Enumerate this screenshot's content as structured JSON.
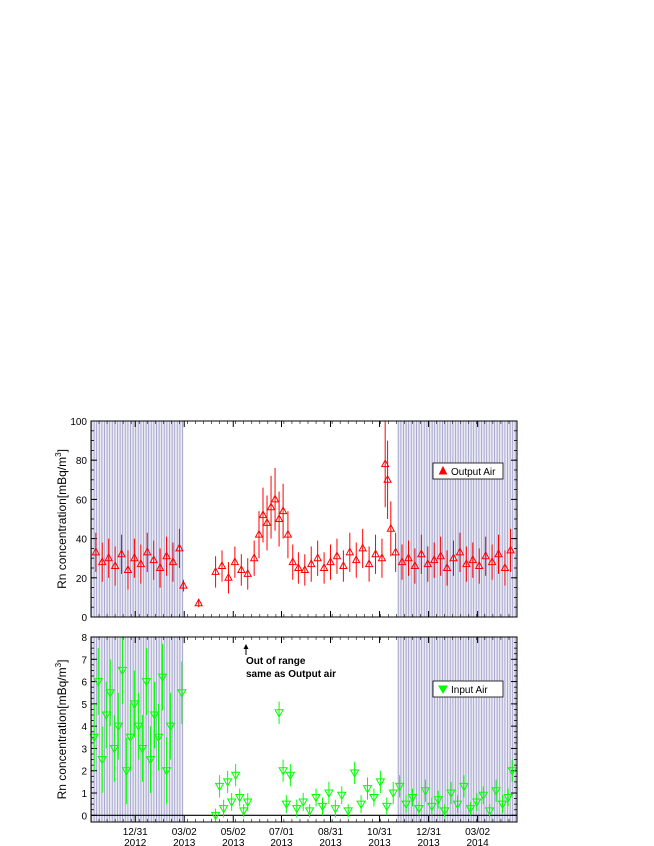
{
  "chart_data": [
    {
      "type": "scatter",
      "ylabel": "Rn concentration[mBq/m",
      "ylabel_sup": "3",
      "ylabel_end": "]",
      "ylim": [
        0,
        100
      ],
      "yticks": [
        0,
        20,
        40,
        60,
        80,
        100
      ],
      "xlim": [
        "2012-11-06",
        "2014-04-20"
      ],
      "shaded_ranges": [
        [
          "2012-11-06",
          "2013-03-01"
        ],
        [
          "2013-11-22",
          "2014-04-20"
        ]
      ],
      "legend": {
        "label": "Output Air",
        "position": "right"
      },
      "color": "#ff0000",
      "marker": "triangle-up",
      "series": [
        {
          "name": "Output Air",
          "x": [
            "2012-11-12",
            "2012-11-20",
            "2012-11-28",
            "2012-12-06",
            "2012-12-14",
            "2012-12-22",
            "2012-12-30",
            "2013-01-07",
            "2013-01-15",
            "2013-01-23",
            "2013-01-31",
            "2013-02-08",
            "2013-02-16",
            "2013-02-24",
            "2013-03-01",
            "2013-03-20",
            "2013-04-10",
            "2013-04-18",
            "2013-04-26",
            "2013-05-04",
            "2013-05-12",
            "2013-05-20",
            "2013-05-28",
            "2013-06-03",
            "2013-06-08",
            "2013-06-13",
            "2013-06-18",
            "2013-06-23",
            "2013-06-28",
            "2013-07-03",
            "2013-07-09",
            "2013-07-15",
            "2013-07-22",
            "2013-07-30",
            "2013-08-07",
            "2013-08-15",
            "2013-08-23",
            "2013-08-31",
            "2013-09-08",
            "2013-09-16",
            "2013-09-24",
            "2013-10-02",
            "2013-10-10",
            "2013-10-18",
            "2013-10-26",
            "2013-11-03",
            "2013-11-07",
            "2013-11-10",
            "2013-11-14",
            "2013-11-20",
            "2013-11-28",
            "2013-12-06",
            "2013-12-14",
            "2013-12-22",
            "2013-12-30",
            "2014-01-07",
            "2014-01-15",
            "2014-01-23",
            "2014-01-31",
            "2014-02-08",
            "2014-02-16",
            "2014-02-24",
            "2014-03-04",
            "2014-03-12",
            "2014-03-20",
            "2014-03-28",
            "2014-04-05",
            "2014-04-12"
          ],
          "y": [
            33,
            28,
            30,
            26,
            32,
            24,
            30,
            27,
            33,
            29,
            25,
            31,
            28,
            35,
            16,
            7,
            23,
            26,
            20,
            28,
            24,
            22,
            30,
            42,
            52,
            48,
            56,
            60,
            50,
            54,
            42,
            28,
            25,
            24,
            27,
            30,
            25,
            28,
            31,
            26,
            33,
            29,
            35,
            27,
            32,
            30,
            78,
            70,
            45,
            33,
            28,
            30,
            26,
            32,
            27,
            29,
            31,
            25,
            30,
            33,
            27,
            29,
            26,
            31,
            28,
            32,
            25,
            34
          ],
          "err": [
            10,
            10,
            10,
            10,
            10,
            10,
            10,
            10,
            10,
            10,
            10,
            10,
            10,
            10,
            3,
            2,
            8,
            8,
            8,
            8,
            8,
            8,
            9,
            12,
            14,
            14,
            16,
            16,
            14,
            14,
            12,
            9,
            8,
            8,
            9,
            9,
            8,
            9,
            9,
            8,
            10,
            9,
            10,
            9,
            10,
            10,
            22,
            20,
            14,
            10,
            9,
            9,
            9,
            10,
            9,
            9,
            10,
            9,
            9,
            10,
            9,
            9,
            9,
            10,
            9,
            10,
            9,
            11
          ]
        }
      ]
    },
    {
      "type": "scatter",
      "ylabel": "Rn concentration[mBq/m",
      "ylabel_sup": "3",
      "ylabel_end": "]",
      "ylim": [
        -0.3,
        8
      ],
      "yticks": [
        0,
        1,
        2,
        3,
        4,
        5,
        6,
        7,
        8
      ],
      "xlim": [
        "2012-11-06",
        "2014-04-20"
      ],
      "xticks": [
        "12/31\n2012",
        "03/02\n2013",
        "05/02\n2013",
        "07/01\n2013",
        "08/31\n2013",
        "10/31\n2013",
        "12/31\n2013",
        "03/02\n2014"
      ],
      "xtick_dates": [
        "2012-12-31",
        "2013-03-02",
        "2013-05-02",
        "2013-07-01",
        "2013-08-31",
        "2013-10-31",
        "2013-12-31",
        "2014-03-02"
      ],
      "shaded_ranges": [
        [
          "2012-11-06",
          "2013-03-01"
        ],
        [
          "2013-11-22",
          "2014-04-20"
        ]
      ],
      "legend": {
        "label": "Input Air",
        "position": "right"
      },
      "annotation": {
        "line1": "Out of range",
        "line2": "same as Output air",
        "date": "2013-06-10"
      },
      "color": "#00ff00",
      "marker": "triangle-down",
      "series": [
        {
          "name": "Input Air",
          "x": [
            "2012-11-10",
            "2012-11-15",
            "2012-11-20",
            "2012-11-25",
            "2012-11-30",
            "2012-12-05",
            "2012-12-10",
            "2012-12-15",
            "2012-12-20",
            "2012-12-25",
            "2012-12-30",
            "2013-01-04",
            "2013-01-09",
            "2013-01-14",
            "2013-01-19",
            "2013-01-24",
            "2013-01-29",
            "2013-02-03",
            "2013-02-08",
            "2013-02-13",
            "2013-02-27",
            "2013-04-10",
            "2013-04-15",
            "2013-04-20",
            "2013-04-25",
            "2013-04-30",
            "2013-05-05",
            "2013-05-10",
            "2013-05-15",
            "2013-05-20",
            "2013-06-28",
            "2013-07-03",
            "2013-07-07",
            "2013-07-12",
            "2013-07-20",
            "2013-07-28",
            "2013-08-05",
            "2013-08-13",
            "2013-08-21",
            "2013-08-29",
            "2013-09-06",
            "2013-09-14",
            "2013-09-22",
            "2013-09-30",
            "2013-10-08",
            "2013-10-16",
            "2013-10-24",
            "2013-11-01",
            "2013-11-09",
            "2013-11-17",
            "2013-11-25",
            "2013-12-03",
            "2013-12-11",
            "2013-12-19",
            "2013-12-27",
            "2014-01-04",
            "2014-01-12",
            "2014-01-20",
            "2014-01-28",
            "2014-02-05",
            "2014-02-13",
            "2014-02-21",
            "2014-03-01",
            "2014-03-09",
            "2014-03-17",
            "2014-03-25",
            "2014-04-02",
            "2014-04-09",
            "2014-04-14"
          ],
          "y": [
            3.5,
            6,
            2.5,
            4.5,
            5.5,
            3,
            4,
            6.5,
            2,
            3.5,
            5,
            4,
            3,
            6,
            2.5,
            4.5,
            3.5,
            6.2,
            2,
            4,
            5.5,
            0,
            1.3,
            0.3,
            1.5,
            0.6,
            1.8,
            0.8,
            0.2,
            0.6,
            4.6,
            2,
            0.5,
            1.8,
            0.3,
            0.6,
            0.2,
            0.8,
            0.4,
            1,
            0.3,
            0.9,
            0.2,
            1.9,
            0.5,
            1.2,
            0.8,
            1.5,
            0.4,
            1,
            1.3,
            0.5,
            0.8,
            0.3,
            1.1,
            0.4,
            0.7,
            0.2,
            1,
            0.5,
            1.3,
            0.3,
            0.6,
            0.9,
            0.2,
            1.1,
            0.5,
            0.8,
            2
          ],
          "err": [
            1.5,
            1.5,
            1.5,
            1.5,
            1.5,
            1.5,
            1.5,
            1.5,
            1.5,
            1.5,
            1.5,
            1.5,
            1.5,
            1.5,
            1.5,
            1.5,
            1.5,
            1.5,
            1.5,
            1.5,
            1.4,
            0.3,
            0.5,
            0.4,
            0.5,
            0.4,
            0.5,
            0.4,
            0.3,
            0.4,
            0.5,
            0.5,
            0.4,
            0.5,
            0.4,
            0.4,
            0.3,
            0.4,
            0.4,
            0.5,
            0.4,
            0.4,
            0.3,
            0.5,
            0.4,
            0.5,
            0.4,
            0.5,
            0.4,
            0.5,
            0.5,
            0.4,
            0.4,
            0.3,
            0.5,
            0.4,
            0.4,
            0.3,
            0.5,
            0.4,
            0.5,
            0.3,
            0.4,
            0.4,
            0.3,
            0.5,
            0.4,
            0.4,
            0.5
          ]
        }
      ]
    }
  ]
}
